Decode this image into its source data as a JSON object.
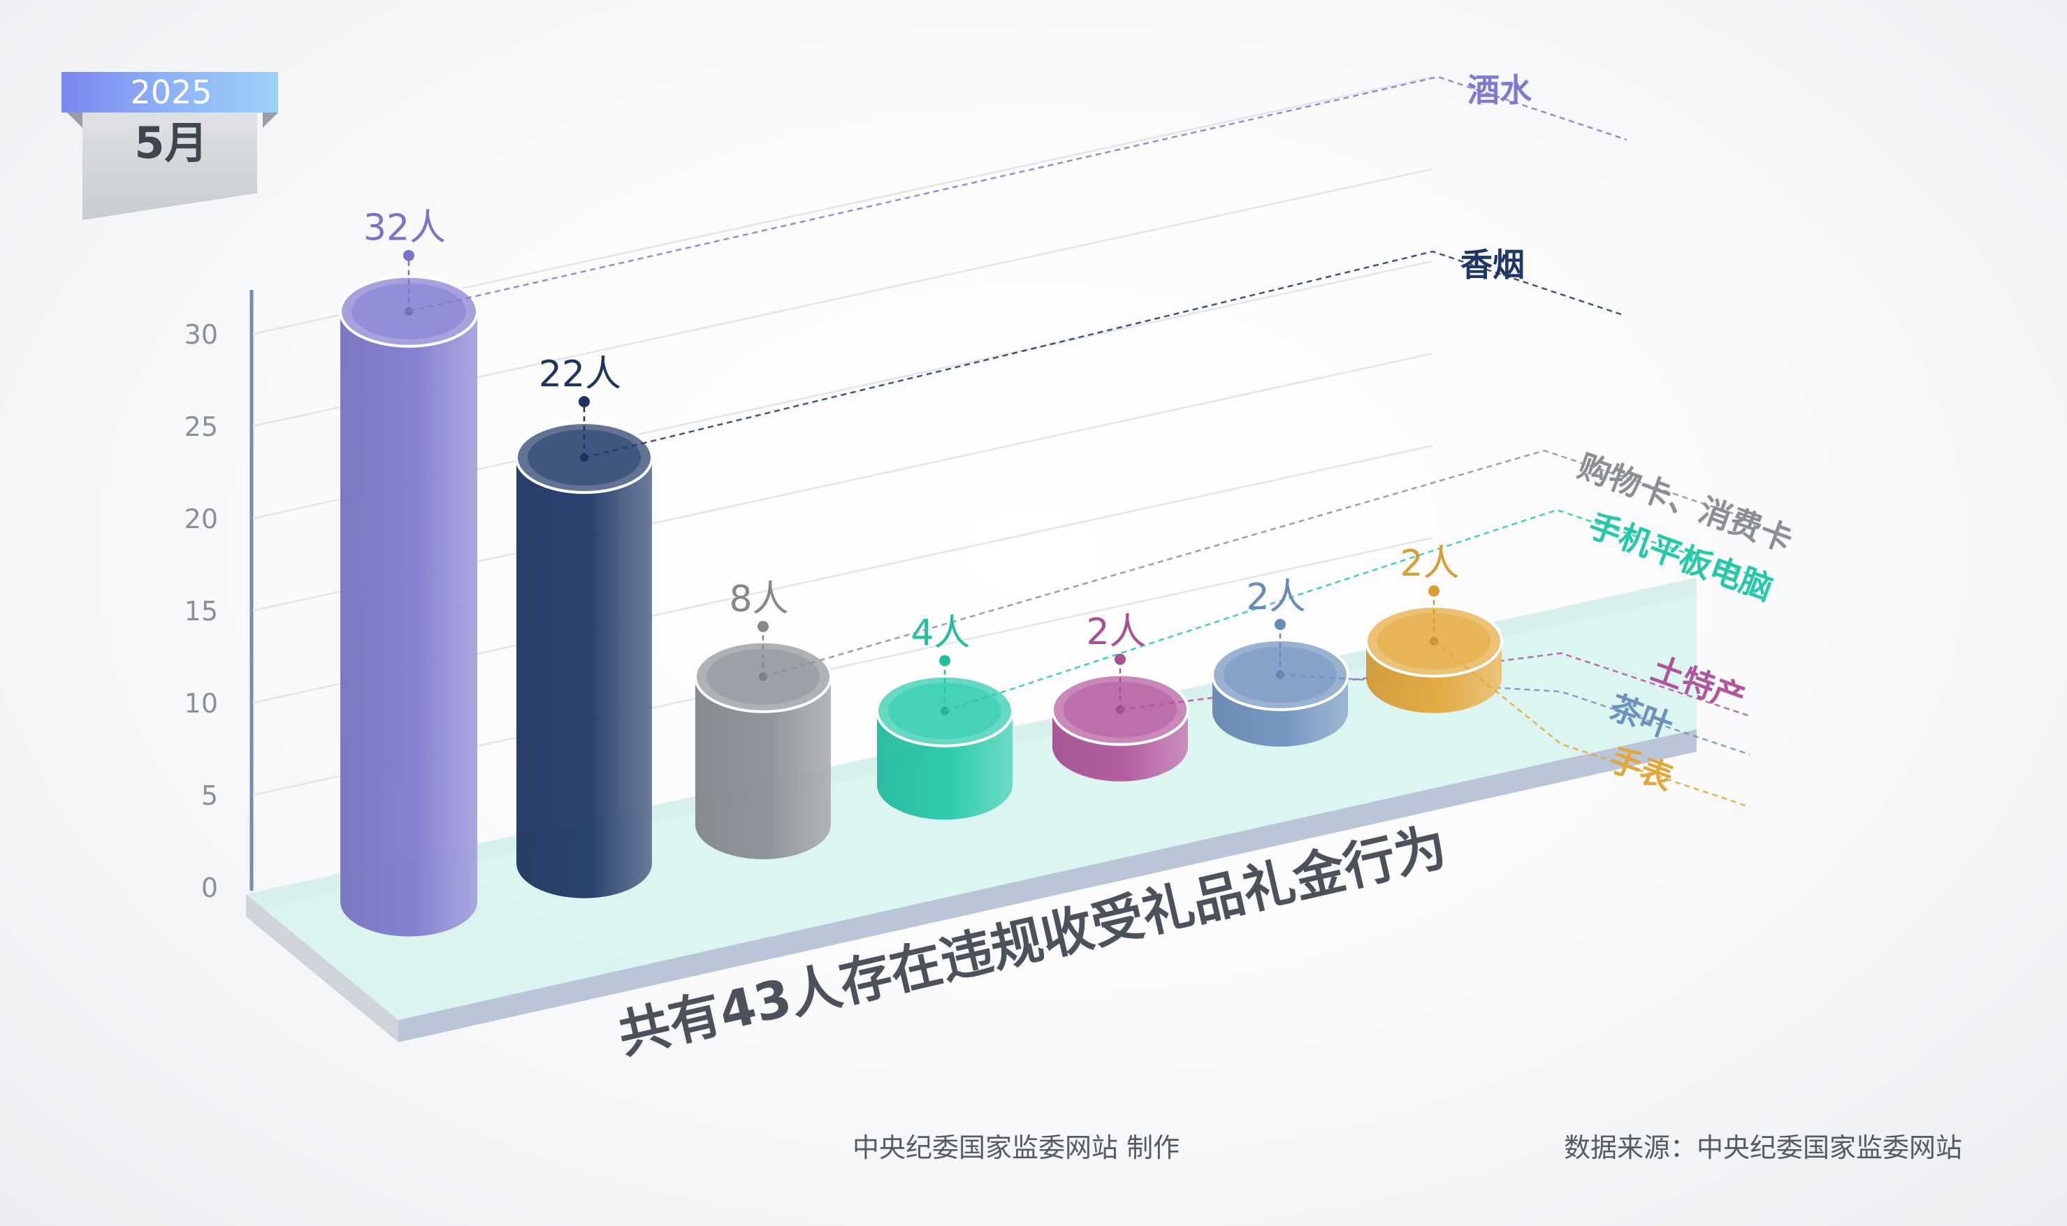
{
  "date_tag": {
    "year": "2025",
    "month": "5月"
  },
  "chart_data": {
    "type": "bar",
    "style": "3d-cylinder",
    "categories": [
      "酒水",
      "香烟",
      "购物卡、消费卡",
      "手机平板电脑",
      "土特产",
      "茶叶",
      "手表"
    ],
    "values": [
      32,
      22,
      8,
      4,
      2,
      2,
      2
    ],
    "value_labels": [
      "32人",
      "22人",
      "8人",
      "4人",
      "2人",
      "2人",
      "2人"
    ],
    "colors": [
      "#7f7ad0",
      "#1f3766",
      "#8b8f95",
      "#24c9a9",
      "#b0559b",
      "#6f91bd",
      "#e3a638"
    ],
    "title": "共有43人存在违规收受礼品礼金行为",
    "yticks": [
      0,
      5,
      10,
      15,
      20,
      25,
      30
    ],
    "ylim": [
      0,
      32
    ],
    "grid": true
  },
  "footer": {
    "producer": "中央纪委国家监委网站 制作",
    "source": "数据来源：中央纪委国家监委网站"
  }
}
